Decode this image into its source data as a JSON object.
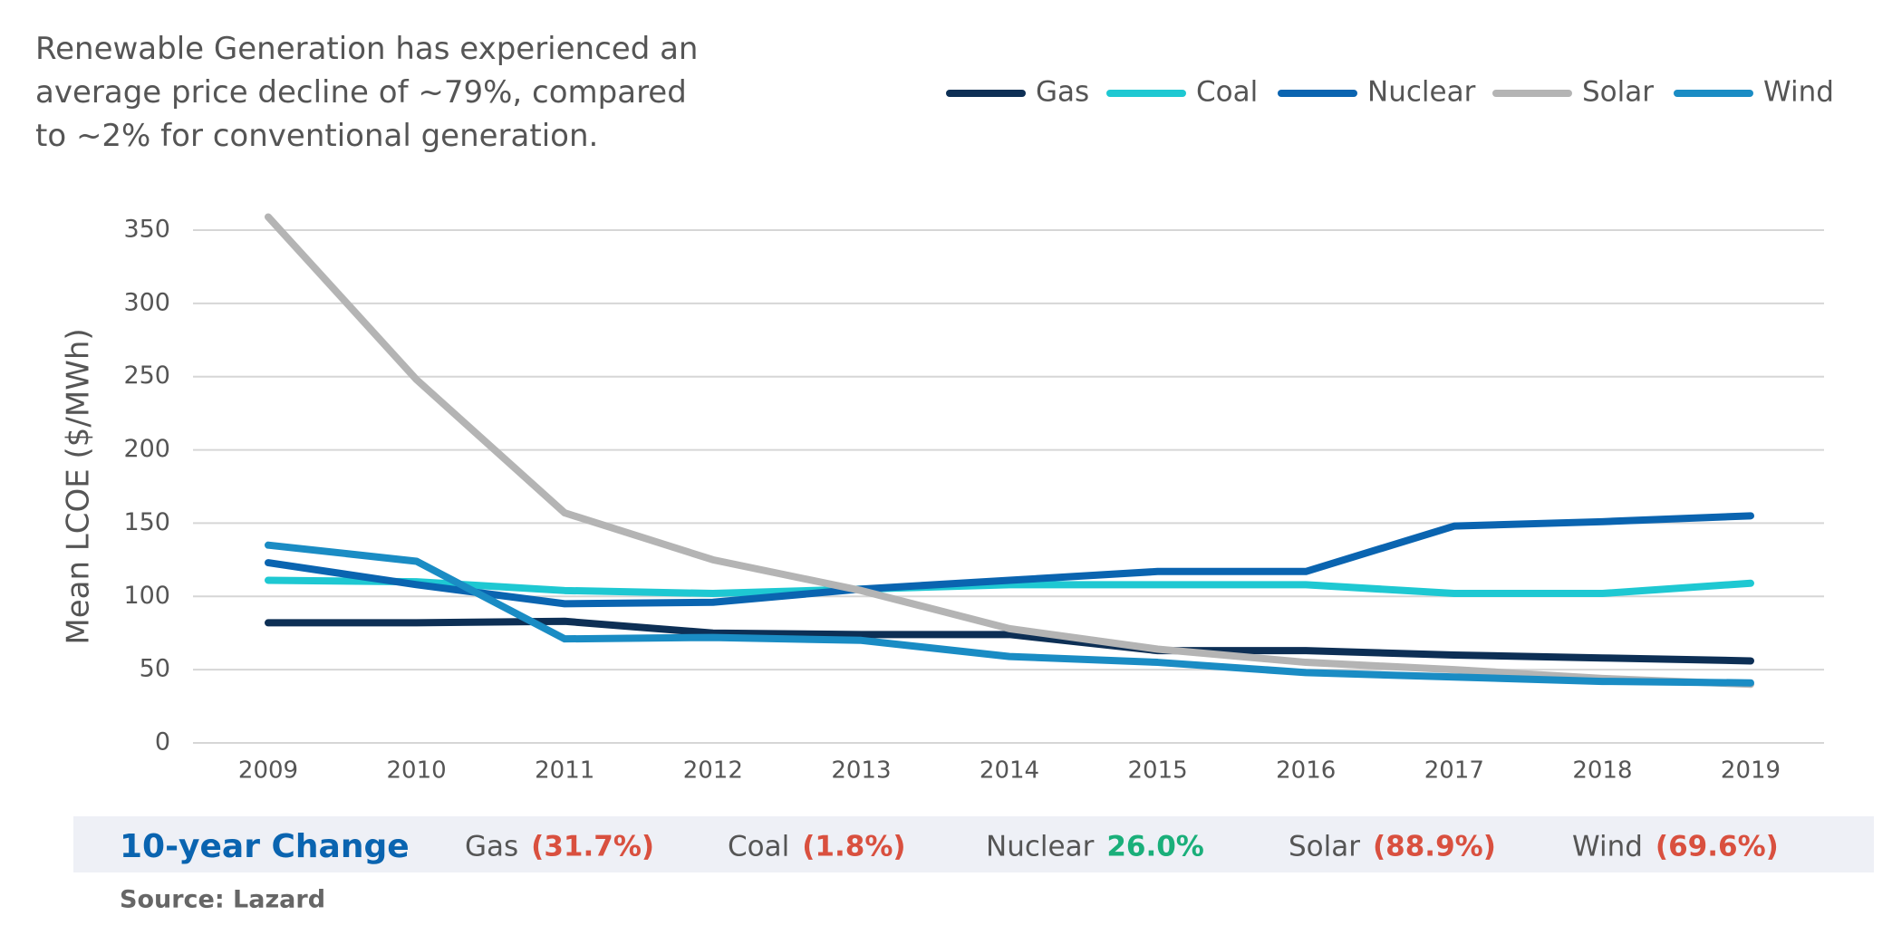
{
  "chart_data": {
    "type": "line",
    "title": "Renewable Generation has experienced an average price decline of ~79%, compared to ~2% for conventional generation.",
    "y_label": "Mean LCOE ($/MWh)",
    "categories": [
      "2009",
      "2010",
      "2011",
      "2012",
      "2013",
      "2014",
      "2015",
      "2016",
      "2017",
      "2018",
      "2019"
    ],
    "series": [
      {
        "name": "Gas",
        "color": "#0d2f55",
        "values": [
          82,
          82,
          83,
          75,
          74,
          74,
          63,
          63,
          60,
          58,
          56
        ]
      },
      {
        "name": "Coal",
        "color": "#1ec8d2",
        "values": [
          111,
          110,
          104,
          102,
          105,
          108,
          108,
          108,
          102,
          102,
          109
        ]
      },
      {
        "name": "Nuclear",
        "color": "#0a64b0",
        "values": [
          123,
          108,
          95,
          96,
          105,
          111,
          117,
          117,
          148,
          151,
          155
        ]
      },
      {
        "name": "Solar",
        "color": "#b4b4b4",
        "values": [
          359,
          248,
          157,
          125,
          104,
          78,
          64,
          55,
          50,
          44,
          40
        ]
      },
      {
        "name": "Wind",
        "color": "#1a8cc4",
        "values": [
          135,
          124,
          71,
          72,
          70,
          59,
          55,
          48,
          45,
          42,
          41
        ]
      }
    ],
    "ylim": [
      0,
      350
    ],
    "yticks": [
      0,
      50,
      100,
      150,
      200,
      250,
      300,
      350
    ],
    "grid": true,
    "legend": "top-right"
  },
  "change_table": {
    "title": "10-year Change",
    "items": [
      {
        "name": "Gas",
        "change": "(31.7%)",
        "color": "#d9503f"
      },
      {
        "name": "Coal",
        "change": "(1.8%)",
        "color": "#d9503f"
      },
      {
        "name": "Nuclear",
        "change": "26.0%",
        "color": "#1aaf7a"
      },
      {
        "name": "Solar",
        "change": "(88.9%)",
        "color": "#d9503f"
      },
      {
        "name": "Wind",
        "change": "(69.6%)",
        "color": "#d9503f"
      }
    ]
  },
  "source": "Source: Lazard"
}
